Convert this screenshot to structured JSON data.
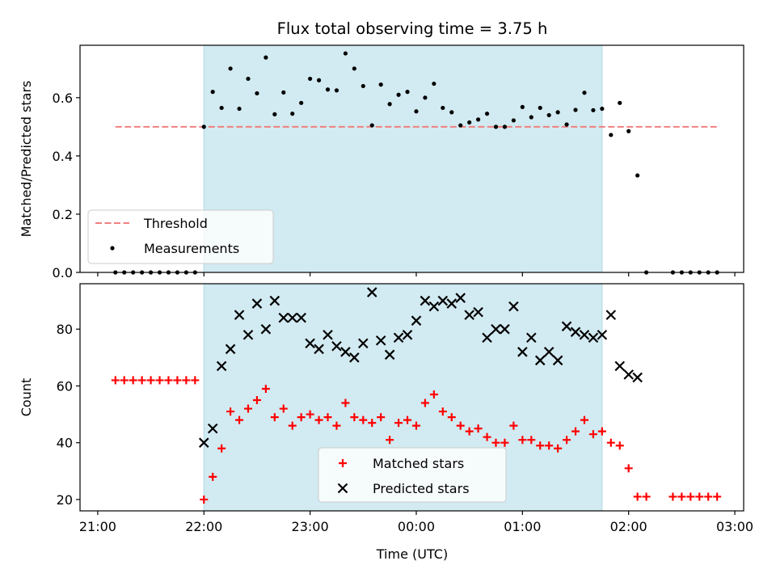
{
  "title": "Flux total observing time = 3.75 h",
  "colors": {
    "shade": "#add8e6",
    "threshold": "#f08080",
    "measurement": "#000000",
    "matched": "#ff0000",
    "predicted": "#000000"
  },
  "chart_data": [
    {
      "type": "scatter",
      "panel": "top",
      "ylabel": "Matched/Predicted stars",
      "xlim": [
        "20:50",
        "03:05"
      ],
      "ylim": [
        0,
        0.78
      ],
      "yticks": [
        0.0,
        0.2,
        0.4,
        0.6
      ],
      "ytick_labels": [
        "0.0",
        "0.2",
        "0.4",
        "0.6"
      ],
      "shaded_interval": [
        "22:00",
        "01:45"
      ],
      "threshold": {
        "name": "Threshold",
        "value": 0.5,
        "x_range": [
          "21:10",
          "02:50"
        ]
      },
      "legend_position": "lower-left",
      "series": [
        {
          "name": "Measurements",
          "marker": "dot",
          "points": [
            [
              "21:10",
              0.0
            ],
            [
              "21:15",
              0.0
            ],
            [
              "21:20",
              0.0
            ],
            [
              "21:25",
              0.0
            ],
            [
              "21:30",
              0.0
            ],
            [
              "21:35",
              0.0
            ],
            [
              "21:40",
              0.0
            ],
            [
              "21:45",
              0.0
            ],
            [
              "21:50",
              0.0
            ],
            [
              "21:55",
              0.0
            ],
            [
              "22:00",
              0.5
            ],
            [
              "22:05",
              0.62
            ],
            [
              "22:10",
              0.565
            ],
            [
              "22:15",
              0.7
            ],
            [
              "22:20",
              0.562
            ],
            [
              "22:25",
              0.665
            ],
            [
              "22:30",
              0.615
            ],
            [
              "22:35",
              0.738
            ],
            [
              "22:40",
              0.543
            ],
            [
              "22:45",
              0.618
            ],
            [
              "22:50",
              0.545
            ],
            [
              "22:55",
              0.582
            ],
            [
              "23:00",
              0.665
            ],
            [
              "23:05",
              0.66
            ],
            [
              "23:10",
              0.628
            ],
            [
              "23:15",
              0.625
            ],
            [
              "23:20",
              0.752
            ],
            [
              "23:25",
              0.7
            ],
            [
              "23:30",
              0.64
            ],
            [
              "23:35",
              0.505
            ],
            [
              "23:40",
              0.645
            ],
            [
              "23:45",
              0.578
            ],
            [
              "23:50",
              0.61
            ],
            [
              "23:55",
              0.62
            ],
            [
              "00:00",
              0.553
            ],
            [
              "00:05",
              0.6
            ],
            [
              "00:10",
              0.648
            ],
            [
              "00:15",
              0.565
            ],
            [
              "00:20",
              0.55
            ],
            [
              "00:25",
              0.505
            ],
            [
              "00:30",
              0.515
            ],
            [
              "00:35",
              0.525
            ],
            [
              "00:40",
              0.545
            ],
            [
              "00:45",
              0.5
            ],
            [
              "00:50",
              0.5
            ],
            [
              "00:55",
              0.522
            ],
            [
              "01:00",
              0.568
            ],
            [
              "01:05",
              0.533
            ],
            [
              "01:10",
              0.565
            ],
            [
              "01:15",
              0.54
            ],
            [
              "01:20",
              0.55
            ],
            [
              "01:25",
              0.508
            ],
            [
              "01:30",
              0.558
            ],
            [
              "01:35",
              0.617
            ],
            [
              "01:40",
              0.557
            ],
            [
              "01:45",
              0.562
            ],
            [
              "01:50",
              0.472
            ],
            [
              "01:55",
              0.582
            ],
            [
              "02:00",
              0.485
            ],
            [
              "02:05",
              0.333
            ],
            [
              "02:10",
              0.0
            ],
            [
              "02:25",
              0.0
            ],
            [
              "02:30",
              0.0
            ],
            [
              "02:35",
              0.0
            ],
            [
              "02:40",
              0.0
            ],
            [
              "02:45",
              0.0
            ],
            [
              "02:50",
              0.0
            ]
          ]
        }
      ]
    },
    {
      "type": "scatter",
      "panel": "bottom",
      "xlabel": "Time (UTC)",
      "ylabel": "Count",
      "xlim": [
        "20:50",
        "03:05"
      ],
      "ylim": [
        16,
        96
      ],
      "xticks": [
        "21:00",
        "22:00",
        "23:00",
        "00:00",
        "01:00",
        "02:00",
        "03:00"
      ],
      "yticks": [
        20,
        40,
        60,
        80
      ],
      "shaded_interval": [
        "22:00",
        "01:45"
      ],
      "legend_position": "lower-center",
      "series": [
        {
          "name": "Matched stars",
          "marker": "plus",
          "points": [
            [
              "21:10",
              62
            ],
            [
              "21:15",
              62
            ],
            [
              "21:20",
              62
            ],
            [
              "21:25",
              62
            ],
            [
              "21:30",
              62
            ],
            [
              "21:35",
              62
            ],
            [
              "21:40",
              62
            ],
            [
              "21:45",
              62
            ],
            [
              "21:50",
              62
            ],
            [
              "21:55",
              62
            ],
            [
              "22:00",
              20
            ],
            [
              "22:05",
              28
            ],
            [
              "22:10",
              38
            ],
            [
              "22:15",
              51
            ],
            [
              "22:20",
              48
            ],
            [
              "22:25",
              52
            ],
            [
              "22:30",
              55
            ],
            [
              "22:35",
              59
            ],
            [
              "22:40",
              49
            ],
            [
              "22:45",
              52
            ],
            [
              "22:50",
              46
            ],
            [
              "22:55",
              49
            ],
            [
              "23:00",
              50
            ],
            [
              "23:05",
              48
            ],
            [
              "23:10",
              49
            ],
            [
              "23:15",
              46
            ],
            [
              "23:20",
              54
            ],
            [
              "23:25",
              49
            ],
            [
              "23:30",
              48
            ],
            [
              "23:35",
              47
            ],
            [
              "23:40",
              49
            ],
            [
              "23:45",
              41
            ],
            [
              "23:50",
              47
            ],
            [
              "23:55",
              48
            ],
            [
              "00:00",
              46
            ],
            [
              "00:05",
              54
            ],
            [
              "00:10",
              57
            ],
            [
              "00:15",
              51
            ],
            [
              "00:20",
              49
            ],
            [
              "00:25",
              46
            ],
            [
              "00:30",
              44
            ],
            [
              "00:35",
              45
            ],
            [
              "00:40",
              42
            ],
            [
              "00:45",
              40
            ],
            [
              "00:50",
              40
            ],
            [
              "00:55",
              46
            ],
            [
              "01:00",
              41
            ],
            [
              "01:05",
              41
            ],
            [
              "01:10",
              39
            ],
            [
              "01:15",
              39
            ],
            [
              "01:20",
              38
            ],
            [
              "01:25",
              41
            ],
            [
              "01:30",
              44
            ],
            [
              "01:35",
              48
            ],
            [
              "01:40",
              43
            ],
            [
              "01:45",
              44
            ],
            [
              "01:50",
              40
            ],
            [
              "01:55",
              39
            ],
            [
              "02:00",
              31
            ],
            [
              "02:05",
              21
            ],
            [
              "02:10",
              21
            ],
            [
              "02:25",
              21
            ],
            [
              "02:30",
              21
            ],
            [
              "02:35",
              21
            ],
            [
              "02:40",
              21
            ],
            [
              "02:45",
              21
            ],
            [
              "02:50",
              21
            ]
          ]
        },
        {
          "name": "Predicted stars",
          "marker": "x",
          "points": [
            [
              "22:00",
              40
            ],
            [
              "22:05",
              45
            ],
            [
              "22:10",
              67
            ],
            [
              "22:15",
              73
            ],
            [
              "22:20",
              85
            ],
            [
              "22:25",
              78
            ],
            [
              "22:30",
              89
            ],
            [
              "22:35",
              80
            ],
            [
              "22:40",
              90
            ],
            [
              "22:45",
              84
            ],
            [
              "22:50",
              84
            ],
            [
              "22:55",
              84
            ],
            [
              "23:00",
              75
            ],
            [
              "23:05",
              73
            ],
            [
              "23:10",
              78
            ],
            [
              "23:15",
              74
            ],
            [
              "23:20",
              72
            ],
            [
              "23:25",
              70
            ],
            [
              "23:30",
              75
            ],
            [
              "23:35",
              93
            ],
            [
              "23:40",
              76
            ],
            [
              "23:45",
              71
            ],
            [
              "23:50",
              77
            ],
            [
              "23:55",
              78
            ],
            [
              "00:00",
              83
            ],
            [
              "00:05",
              90
            ],
            [
              "00:10",
              88
            ],
            [
              "00:15",
              90
            ],
            [
              "00:20",
              89
            ],
            [
              "00:25",
              91
            ],
            [
              "00:30",
              85
            ],
            [
              "00:35",
              86
            ],
            [
              "00:40",
              77
            ],
            [
              "00:45",
              80
            ],
            [
              "00:50",
              80
            ],
            [
              "00:55",
              88
            ],
            [
              "01:00",
              72
            ],
            [
              "01:05",
              77
            ],
            [
              "01:10",
              69
            ],
            [
              "01:15",
              72
            ],
            [
              "01:20",
              69
            ],
            [
              "01:25",
              81
            ],
            [
              "01:30",
              79
            ],
            [
              "01:35",
              78
            ],
            [
              "01:40",
              77
            ],
            [
              "01:45",
              78
            ],
            [
              "01:50",
              85
            ],
            [
              "01:55",
              67
            ],
            [
              "02:00",
              64
            ],
            [
              "02:05",
              63
            ]
          ]
        }
      ]
    }
  ]
}
